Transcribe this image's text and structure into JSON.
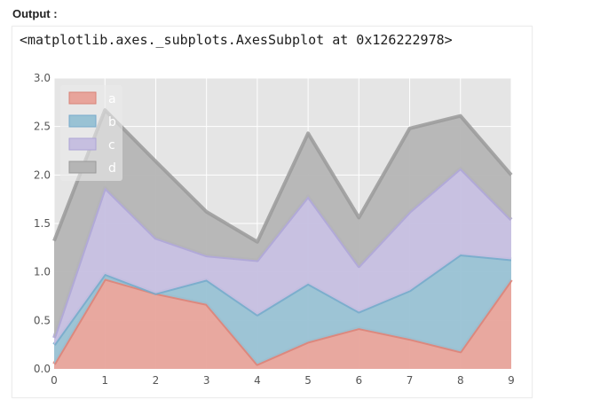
{
  "heading": "Output :",
  "repr_text": "<matplotlib.axes._subplots.AxesSubplot at 0x126222978>",
  "chart_data": {
    "type": "area",
    "stacked": true,
    "x": [
      0,
      1,
      2,
      3,
      4,
      5,
      6,
      7,
      8,
      9
    ],
    "xticks": [
      "0",
      "1",
      "2",
      "3",
      "4",
      "5",
      "6",
      "7",
      "8",
      "9"
    ],
    "yticks": [
      "0.0",
      "0.5",
      "1.0",
      "1.5",
      "2.0",
      "2.5",
      "3.0"
    ],
    "ylim": [
      0,
      3.0
    ],
    "xlim": [
      0,
      9
    ],
    "grid": true,
    "legend_position": "top-left",
    "series": [
      {
        "name": "a",
        "values": [
          0.05,
          0.93,
          0.78,
          0.67,
          0.05,
          0.28,
          0.42,
          0.31,
          0.18,
          0.92
        ],
        "color": "#E8A49B",
        "edge": "#D98378"
      },
      {
        "name": "b",
        "values": [
          0.2,
          0.05,
          0.0,
          0.25,
          0.51,
          0.6,
          0.17,
          0.5,
          1.0,
          0.21
        ],
        "color": "#99C2D4",
        "edge": "#77AACB"
      },
      {
        "name": "c",
        "values": [
          0.07,
          0.89,
          0.57,
          0.25,
          0.56,
          0.9,
          0.47,
          0.81,
          0.89,
          0.41
        ],
        "color": "#C6BFE0",
        "edge": "#ADA4D6"
      },
      {
        "name": "d",
        "values": [
          1.0,
          0.8,
          0.79,
          0.45,
          0.19,
          0.65,
          0.5,
          0.86,
          0.54,
          0.46
        ],
        "color": "#B5B5B5",
        "edge": "#9A9A9A"
      }
    ]
  }
}
